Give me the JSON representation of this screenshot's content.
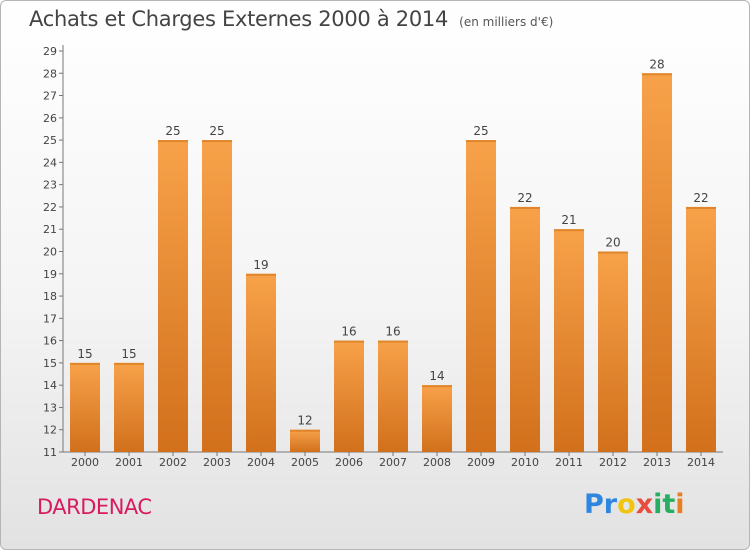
{
  "header": {
    "title": "Achats et Charges Externes 2000 à 2014",
    "subtitle": "(en milliers d'€)"
  },
  "footer": {
    "town": "DARDENAC",
    "logo_letters": [
      {
        "ch": "P",
        "color": "#2e86de"
      },
      {
        "ch": "r",
        "color": "#2e86de"
      },
      {
        "ch": "o",
        "color": "#f1c40f"
      },
      {
        "ch": "x",
        "color": "#e74c3c"
      },
      {
        "ch": "i",
        "color": "#27ae60"
      },
      {
        "ch": "t",
        "color": "#27ae60"
      },
      {
        "ch": "i",
        "color": "#e67e22"
      }
    ]
  },
  "chart_data": {
    "type": "bar",
    "title": "Achats et Charges Externes 2000 à 2014",
    "subtitle": "(en milliers d'€)",
    "categories": [
      "2000",
      "2001",
      "2002",
      "2003",
      "2004",
      "2005",
      "2006",
      "2007",
      "2008",
      "2009",
      "2010",
      "2011",
      "2012",
      "2013",
      "2014"
    ],
    "values": [
      15,
      15,
      25,
      25,
      19,
      12,
      16,
      16,
      14,
      25,
      22,
      21,
      20,
      28,
      22
    ],
    "ylim": [
      11,
      29
    ],
    "yticks": [
      11,
      12,
      13,
      14,
      15,
      16,
      17,
      18,
      19,
      20,
      21,
      22,
      23,
      24,
      25,
      26,
      27,
      28,
      29
    ],
    "grid": false,
    "bar_color": "#f39c3c",
    "bar_color_dark": "#d9741a"
  }
}
